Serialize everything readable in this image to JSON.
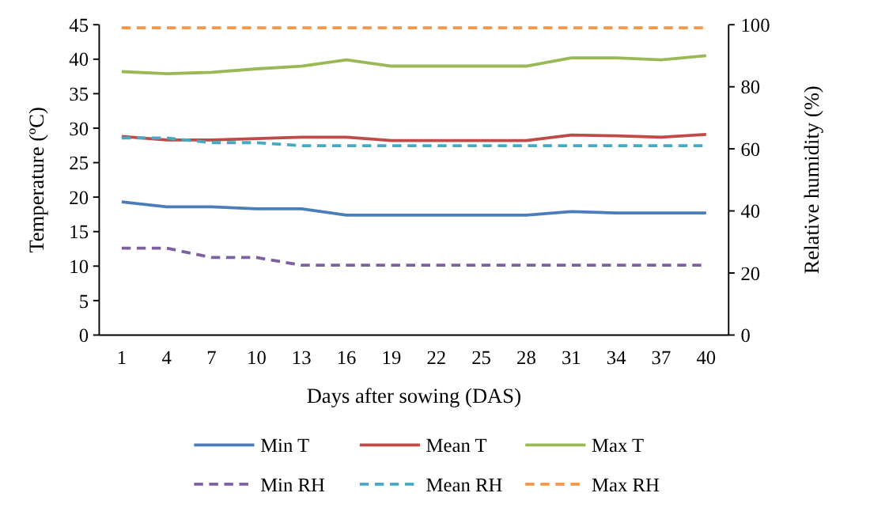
{
  "chart_data": {
    "type": "line",
    "xlabel": "Days after sowing (DAS)",
    "ylabel": "Temperature (ºC)",
    "y2label": "Relative humidity (%)",
    "categories": [
      "1",
      "4",
      "7",
      "10",
      "13",
      "16",
      "19",
      "22",
      "25",
      "28",
      "31",
      "34",
      "37",
      "40"
    ],
    "series": [
      {
        "name": "Min T",
        "color": "#4a7ebb",
        "line_style": "solid",
        "values": [
          19.3,
          18.6,
          18.6,
          18.3,
          18.3,
          17.4,
          17.4,
          17.4,
          17.4,
          17.4,
          17.9,
          17.7,
          17.7,
          17.7
        ]
      },
      {
        "name": "Mean T",
        "color": "#be4b48",
        "line_style": "solid",
        "values": [
          28.8,
          28.3,
          28.3,
          28.5,
          28.7,
          28.7,
          28.2,
          28.2,
          28.2,
          28.2,
          29.0,
          28.9,
          28.7,
          29.1
        ]
      },
      {
        "name": "Max T",
        "color": "#98b954",
        "line_style": "solid",
        "values": [
          38.2,
          37.9,
          38.1,
          38.6,
          39.0,
          39.9,
          39.0,
          39.0,
          39.0,
          39.0,
          40.2,
          40.2,
          39.9,
          40.5
        ]
      },
      {
        "name": "Min RH",
        "color": "#7d60a0",
        "line_style": "dashed",
        "axis": "y2",
        "values": [
          28,
          28,
          25,
          25,
          22.5,
          22.5,
          22.5,
          22.5,
          22.5,
          22.5,
          22.5,
          22.5,
          22.5,
          22.5
        ]
      },
      {
        "name": "Mean RH",
        "color": "#46aac5",
        "line_style": "dashed",
        "axis": "y2",
        "values": [
          63.5,
          63.5,
          62,
          62,
          61,
          61,
          61,
          61,
          61,
          61,
          61,
          61,
          61,
          61
        ]
      },
      {
        "name": "Max RH",
        "color": "#f79646",
        "line_style": "dashed",
        "axis": "y2",
        "values": [
          99,
          99,
          99,
          99,
          99,
          99,
          99,
          99,
          99,
          99,
          99,
          99,
          99,
          99
        ]
      }
    ],
    "ylim": [
      0,
      45
    ],
    "yticks": [
      0,
      5,
      10,
      15,
      20,
      25,
      30,
      35,
      40,
      45
    ],
    "y2lim": [
      0,
      100
    ],
    "y2ticks": [
      0,
      20,
      40,
      60,
      80,
      100
    ],
    "legend": "bottom",
    "grid": false,
    "marker": "none"
  }
}
